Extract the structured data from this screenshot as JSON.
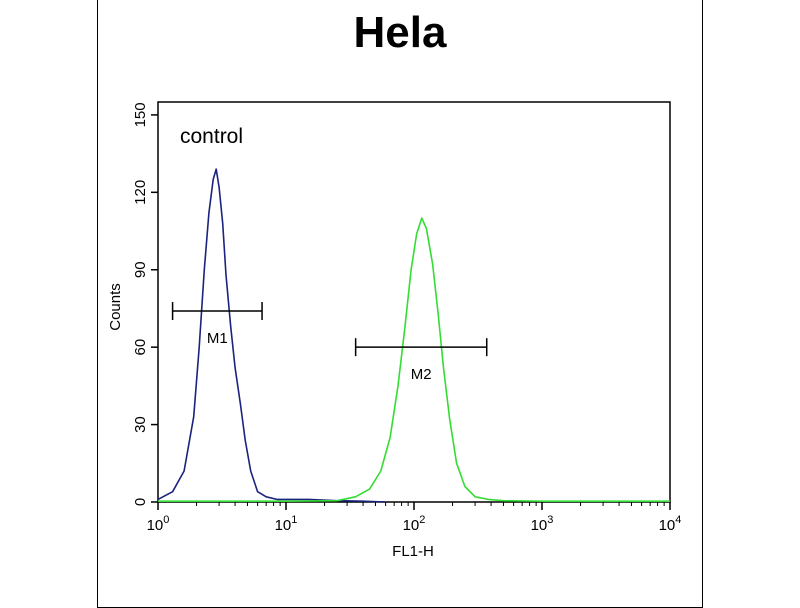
{
  "title": "Hela",
  "chart_data": {
    "type": "line",
    "title": "Hela",
    "xlabel": "FL1-H",
    "ylabel": "Counts",
    "xscale": "log",
    "xlim": [
      1,
      10000
    ],
    "ylim": [
      0,
      155
    ],
    "x_ticks": [
      {
        "base": "10",
        "exp": "0"
      },
      {
        "base": "10",
        "exp": "1"
      },
      {
        "base": "10",
        "exp": "2"
      },
      {
        "base": "10",
        "exp": "3"
      },
      {
        "base": "10",
        "exp": "4"
      }
    ],
    "y_ticks": [
      "0",
      "30",
      "60",
      "90",
      "120",
      "150"
    ],
    "annotation": "control",
    "series": [
      {
        "color": "#1a237e",
        "x": [
          1.0,
          1.3,
          1.6,
          1.9,
          2.1,
          2.3,
          2.5,
          2.7,
          2.85,
          3.0,
          3.2,
          3.4,
          3.7,
          4.0,
          4.4,
          4.8,
          5.3,
          6.0,
          7.0,
          8.5,
          11,
          15,
          25,
          40,
          60
        ],
        "y": [
          1,
          4,
          12,
          33,
          60,
          90,
          112,
          125,
          129,
          122,
          108,
          88,
          68,
          52,
          38,
          24,
          12,
          4,
          2,
          1,
          1,
          1,
          0.5,
          0.3,
          0
        ]
      },
      {
        "color": "#33dd33",
        "x": [
          1,
          10,
          25,
          35,
          45,
          55,
          65,
          75,
          85,
          95,
          105,
          115,
          125,
          140,
          155,
          170,
          190,
          215,
          250,
          300,
          380,
          500,
          1000,
          10000
        ],
        "y": [
          0.3,
          0.3,
          0.5,
          2,
          5,
          12,
          25,
          45,
          68,
          90,
          104,
          110,
          106,
          92,
          72,
          52,
          32,
          15,
          6,
          2,
          1,
          0.5,
          0.3,
          0.3
        ]
      }
    ],
    "markers": [
      {
        "label": "M1",
        "x_start": 1.3,
        "x_end": 6.5,
        "y": 74
      },
      {
        "label": "M2",
        "x_start": 35,
        "x_end": 370,
        "y": 60
      }
    ]
  }
}
